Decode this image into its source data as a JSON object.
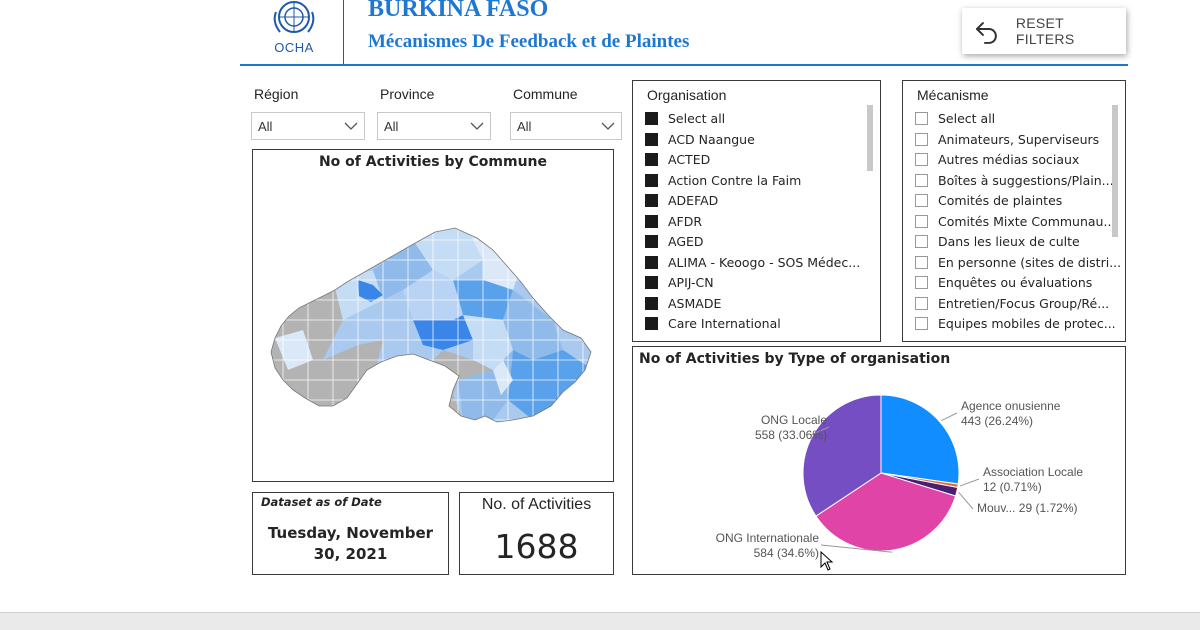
{
  "header": {
    "logo_text": "OCHA",
    "country": "BURKINA FASO",
    "subtitle": "Mécanismes De Feedback et de Plaintes",
    "reset_label": "RESET FILTERS"
  },
  "slicers": {
    "region": {
      "label": "Région",
      "value": "All"
    },
    "province": {
      "label": "Province",
      "value": "All"
    },
    "commune": {
      "label": "Commune",
      "value": "All"
    }
  },
  "map": {
    "title": "No of Activities by Commune"
  },
  "organisation": {
    "title": "Organisation",
    "items": [
      "Select all",
      "ACD Naangue",
      "ACTED",
      "Action Contre la Faim",
      "ADEFAD",
      "AFDR",
      "AGED",
      "ALIMA - Keoogo - SOS Médec...",
      "APIJ-CN",
      "ASMADE",
      "Care International"
    ]
  },
  "mecanisme": {
    "title": "Mécanisme",
    "items": [
      "Select all",
      "Animateurs, Superviseurs",
      "Autres médias sociaux",
      "Boîtes à suggestions/Plain...",
      "Comités de plaintes",
      "Comités Mixte Communau...",
      "Dans les lieux de culte",
      "En personne (sites de distri...",
      "Enquêtes ou évaluations",
      "Entretien/Focus Group/Ré...",
      "Equipes mobiles de protec..."
    ]
  },
  "date_card": {
    "heading": "Dataset as of Date",
    "line1": "Tuesday, November",
    "line2": "30, 2021"
  },
  "kpi": {
    "heading": "No. of Activities",
    "value": "1688"
  },
  "chart_data": {
    "type": "pie",
    "title": "No of Activities by Type of organisation",
    "slices": [
      {
        "name": "Agence onusienne",
        "value": 443,
        "pct": "26.24%",
        "label": "Agence onusienne",
        "value_label": "443 (26.24%)",
        "color": "#118DFF"
      },
      {
        "name": "Association Locale",
        "value": 12,
        "pct": "0.71%",
        "label": "Association Locale",
        "value_label": "12 (0.71%)",
        "color": "#E66C37"
      },
      {
        "name": "Mouv...",
        "value": 29,
        "pct": "1.72%",
        "label": "Mouv... 29 (1.72%)",
        "value_label": "",
        "color": "#4B1E75"
      },
      {
        "name": "ONG Internationale",
        "value": 584,
        "pct": "34.6%",
        "label": "ONG Internationale",
        "value_label": "584 (34.6%)",
        "color": "#E044A7"
      },
      {
        "name": "ONG Locale",
        "value": 558,
        "pct": "33.06%",
        "label": "ONG Locale",
        "value_label": "558 (33.06%)",
        "color": "#744EC2"
      }
    ]
  }
}
